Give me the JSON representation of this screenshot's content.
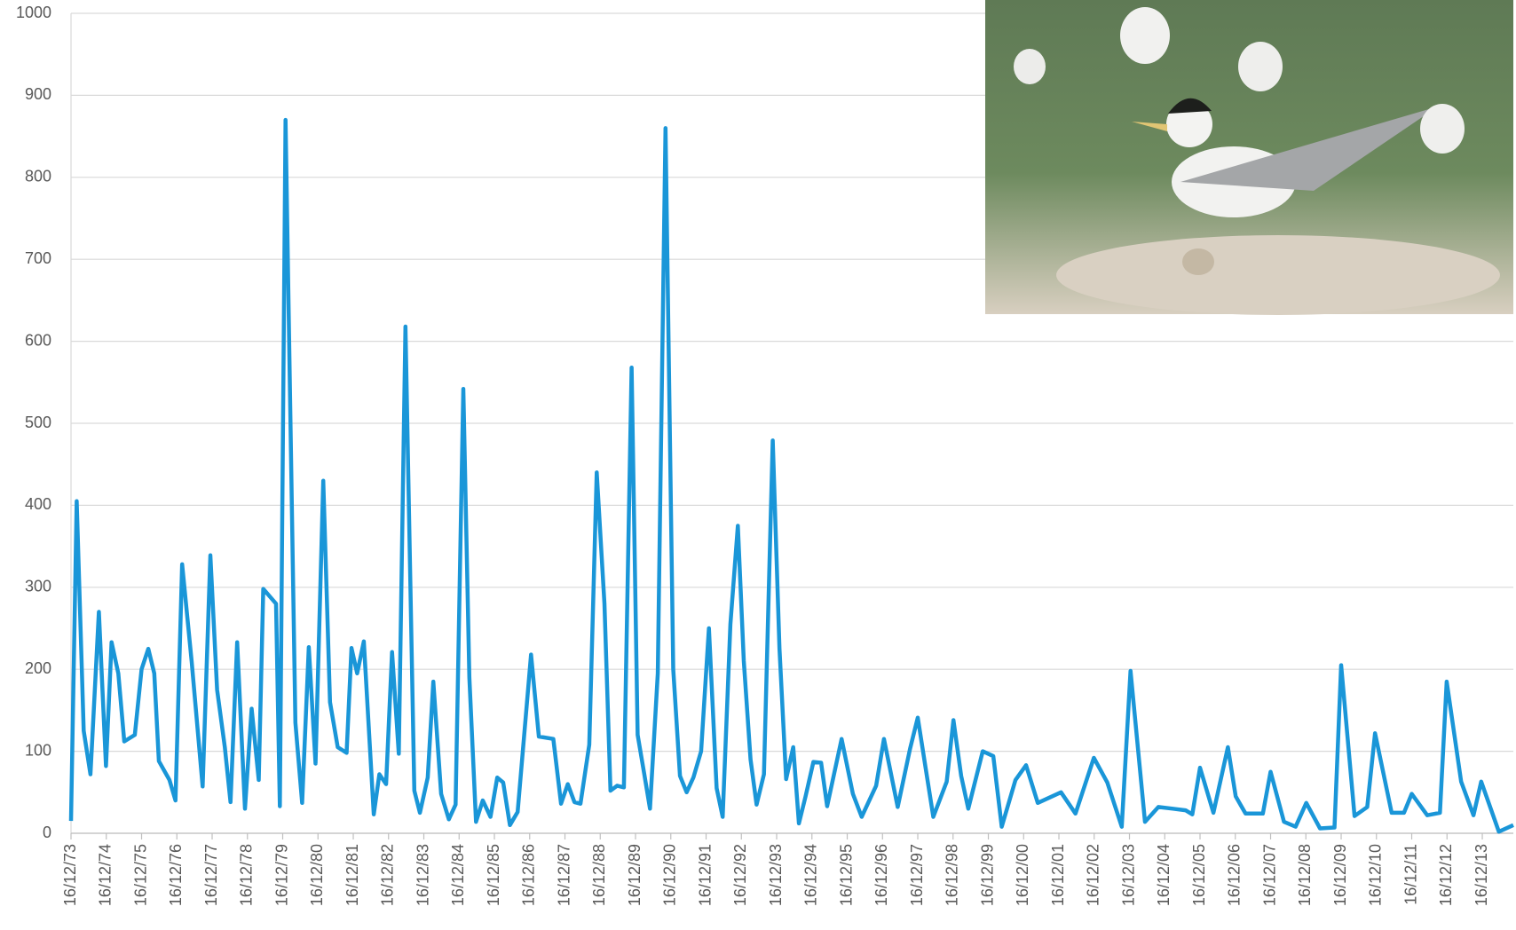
{
  "chart_data": {
    "type": "line",
    "x": [
      1973.96,
      1974.12,
      1974.32,
      1974.51,
      1974.75,
      1974.95,
      1975.11,
      1975.3,
      1975.47,
      1975.77,
      1975.96,
      1976.15,
      1976.32,
      1976.45,
      1976.75,
      1976.92,
      1977.11,
      1977.38,
      1977.69,
      1977.91,
      1978.1,
      1978.32,
      1978.48,
      1978.67,
      1978.89,
      1979.08,
      1979.28,
      1979.41,
      1979.77,
      1979.88,
      1980.04,
      1980.32,
      1980.51,
      1980.7,
      1980.89,
      1981.11,
      1981.3,
      1981.52,
      1981.77,
      1981.91,
      1982.07,
      1982.26,
      1982.54,
      1982.7,
      1982.89,
      1983.06,
      1983.25,
      1983.44,
      1983.69,
      1983.85,
      1984.07,
      1984.23,
      1984.45,
      1984.67,
      1984.86,
      1985.08,
      1985.25,
      1985.44,
      1985.63,
      1985.85,
      1986.04,
      1986.21,
      1986.4,
      1986.62,
      1987.0,
      1987.22,
      1987.63,
      1987.85,
      1988.04,
      1988.23,
      1988.4,
      1988.65,
      1988.86,
      1989.08,
      1989.25,
      1989.44,
      1989.63,
      1989.85,
      1990.02,
      1990.21,
      1990.37,
      1990.59,
      1990.81,
      1991.03,
      1991.22,
      1991.41,
      1991.6,
      1991.82,
      1992.04,
      1992.26,
      1992.43,
      1992.65,
      1992.86,
      1993.03,
      1993.22,
      1993.39,
      1993.6,
      1993.85,
      1994.04,
      1994.23,
      1994.43,
      1994.59,
      1994.78,
      1995.0,
      1995.22,
      1995.39,
      1995.8,
      1996.12,
      1996.37,
      1996.78,
      1997.0,
      1997.39,
      1997.74,
      1997.96,
      1998.18,
      1998.4,
      1998.78,
      1998.97,
      1999.19,
      1999.39,
      1999.8,
      2000.1,
      2000.34,
      2000.73,
      2001.03,
      2001.36,
      2002.02,
      2002.43,
      2002.95,
      2003.33,
      2003.74,
      2003.99,
      2004.4,
      2004.78,
      2005.19,
      2005.55,
      2005.74,
      2005.96,
      2006.34,
      2006.75,
      2006.97,
      2007.25,
      2007.74,
      2007.96,
      2008.34,
      2008.67,
      2008.97,
      2009.36,
      2009.77,
      2009.96,
      2010.34,
      2010.7,
      2010.92,
      2011.39,
      2011.74,
      2011.96,
      2012.4,
      2012.76,
      2012.95,
      2013.36,
      2013.71,
      2013.93,
      2014.43,
      2014.84
    ],
    "values": [
      15,
      405,
      125,
      72,
      270,
      82,
      233,
      195,
      112,
      120,
      200,
      225,
      195,
      88,
      65,
      40,
      328,
      210,
      57,
      339,
      175,
      105,
      38,
      233,
      30,
      152,
      65,
      298,
      280,
      33,
      870,
      135,
      37,
      227,
      85,
      430,
      160,
      105,
      98,
      226,
      195,
      234,
      23,
      72,
      60,
      221,
      97,
      618,
      52,
      25,
      68,
      185,
      48,
      17,
      35,
      542,
      190,
      14,
      40,
      20,
      68,
      62,
      10,
      26,
      218,
      118,
      115,
      36,
      60,
      38,
      36,
      108,
      440,
      280,
      52,
      58,
      56,
      568,
      120,
      72,
      30,
      195,
      860,
      200,
      70,
      50,
      68,
      100,
      250,
      55,
      20,
      255,
      375,
      210,
      90,
      35,
      72,
      479,
      225,
      66,
      105,
      12,
      45,
      87,
      86,
      33,
      115,
      48,
      20,
      58,
      115,
      32,
      103,
      141,
      80,
      20,
      63,
      138,
      70,
      30,
      100,
      94,
      8,
      65,
      83,
      37,
      50,
      24,
      92,
      62,
      8,
      198,
      14,
      32,
      30,
      28,
      23,
      80,
      25,
      105,
      45,
      24,
      24,
      75,
      14,
      8,
      37,
      6,
      7,
      205,
      21,
      32,
      122,
      25,
      25,
      48,
      22,
      25,
      185,
      63,
      22,
      63,
      2,
      10
    ],
    "color": "#1a96d8",
    "xlim": [
      1973.96,
      2014.84
    ],
    "xticks": [
      {
        "value": 1973.96,
        "label": "16/12/73"
      },
      {
        "value": 1974.96,
        "label": "16/12/74"
      },
      {
        "value": 1975.96,
        "label": "16/12/75"
      },
      {
        "value": 1976.96,
        "label": "16/12/76"
      },
      {
        "value": 1977.96,
        "label": "16/12/77"
      },
      {
        "value": 1978.96,
        "label": "16/12/78"
      },
      {
        "value": 1979.96,
        "label": "16/12/79"
      },
      {
        "value": 1980.96,
        "label": "16/12/80"
      },
      {
        "value": 1981.96,
        "label": "16/12/81"
      },
      {
        "value": 1982.96,
        "label": "16/12/82"
      },
      {
        "value": 1983.96,
        "label": "16/12/83"
      },
      {
        "value": 1984.96,
        "label": "16/12/84"
      },
      {
        "value": 1985.96,
        "label": "16/12/85"
      },
      {
        "value": 1986.96,
        "label": "16/12/86"
      },
      {
        "value": 1987.96,
        "label": "16/12/87"
      },
      {
        "value": 1988.96,
        "label": "16/12/88"
      },
      {
        "value": 1989.96,
        "label": "16/12/89"
      },
      {
        "value": 1990.96,
        "label": "16/12/90"
      },
      {
        "value": 1991.96,
        "label": "16/12/91"
      },
      {
        "value": 1992.96,
        "label": "16/12/92"
      },
      {
        "value": 1993.96,
        "label": "16/12/93"
      },
      {
        "value": 1994.96,
        "label": "16/12/94"
      },
      {
        "value": 1995.96,
        "label": "16/12/95"
      },
      {
        "value": 1996.96,
        "label": "16/12/96"
      },
      {
        "value": 1997.96,
        "label": "16/12/97"
      },
      {
        "value": 1998.96,
        "label": "16/12/98"
      },
      {
        "value": 1999.96,
        "label": "16/12/99"
      },
      {
        "value": 2000.96,
        "label": "16/12/00"
      },
      {
        "value": 2001.96,
        "label": "16/12/01"
      },
      {
        "value": 2002.96,
        "label": "16/12/02"
      },
      {
        "value": 2003.96,
        "label": "16/12/03"
      },
      {
        "value": 2004.96,
        "label": "16/12/04"
      },
      {
        "value": 2005.96,
        "label": "16/12/05"
      },
      {
        "value": 2006.96,
        "label": "16/12/06"
      },
      {
        "value": 2007.96,
        "label": "16/12/07"
      },
      {
        "value": 2008.96,
        "label": "16/12/08"
      },
      {
        "value": 2009.96,
        "label": "16/12/09"
      },
      {
        "value": 2010.96,
        "label": "16/12/10"
      },
      {
        "value": 2011.96,
        "label": "16/12/11"
      },
      {
        "value": 2012.96,
        "label": "16/12/12"
      },
      {
        "value": 2013.96,
        "label": "16/12/13"
      }
    ],
    "ylim": [
      0,
      1000
    ],
    "yticks": [
      0,
      100,
      200,
      300,
      400,
      500,
      600,
      700,
      800,
      900,
      1000
    ],
    "grid": true
  }
}
